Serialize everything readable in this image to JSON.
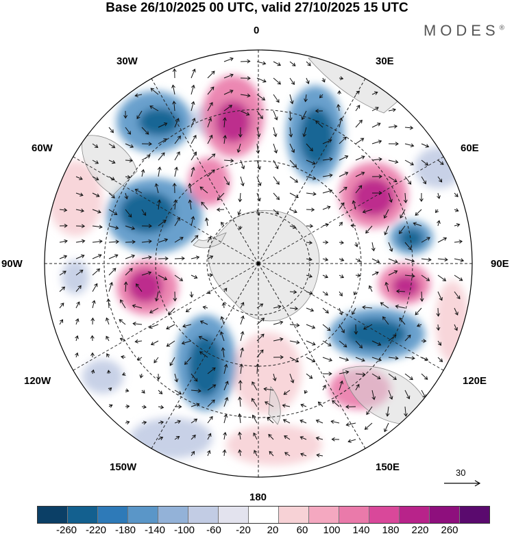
{
  "title": "Base 26/10/2025 00 UTC, valid 27/10/2025 15 UTC",
  "brand": {
    "name": "MODES",
    "mark": "®"
  },
  "lon_labels": {
    "top": "0",
    "bottom": "180",
    "left": "90W",
    "right": "90E",
    "w30": "30W",
    "e30": "30E",
    "w60": "60W",
    "e60": "60E",
    "w120": "120W",
    "e120": "120E",
    "w150": "150W",
    "e150": "150E"
  },
  "reference_vector": {
    "label": "30"
  },
  "colorbar": {
    "colors": [
      "#0b3f66",
      "#13608f",
      "#2e7ab8",
      "#5a96c8",
      "#93b2d8",
      "#c2cce4",
      "#e3e3ee",
      "#ffffff",
      "#f7d2d6",
      "#f4a8c0",
      "#ea7aaa",
      "#d9489a",
      "#b8238a",
      "#8e0f7d",
      "#5a0a6e"
    ],
    "labels": [
      "-260",
      "-220",
      "-180",
      "-140",
      "-100",
      "-60",
      "-20",
      "20",
      "60",
      "100",
      "140",
      "180",
      "220",
      "260"
    ]
  },
  "anomaly_colors": {
    "neg3": "#13608f",
    "neg2": "#5a96c8",
    "neg1": "#c2cce4",
    "pos1": "#f7d2d6",
    "pos2": "#ea7aaa",
    "pos3": "#b8238a"
  }
}
